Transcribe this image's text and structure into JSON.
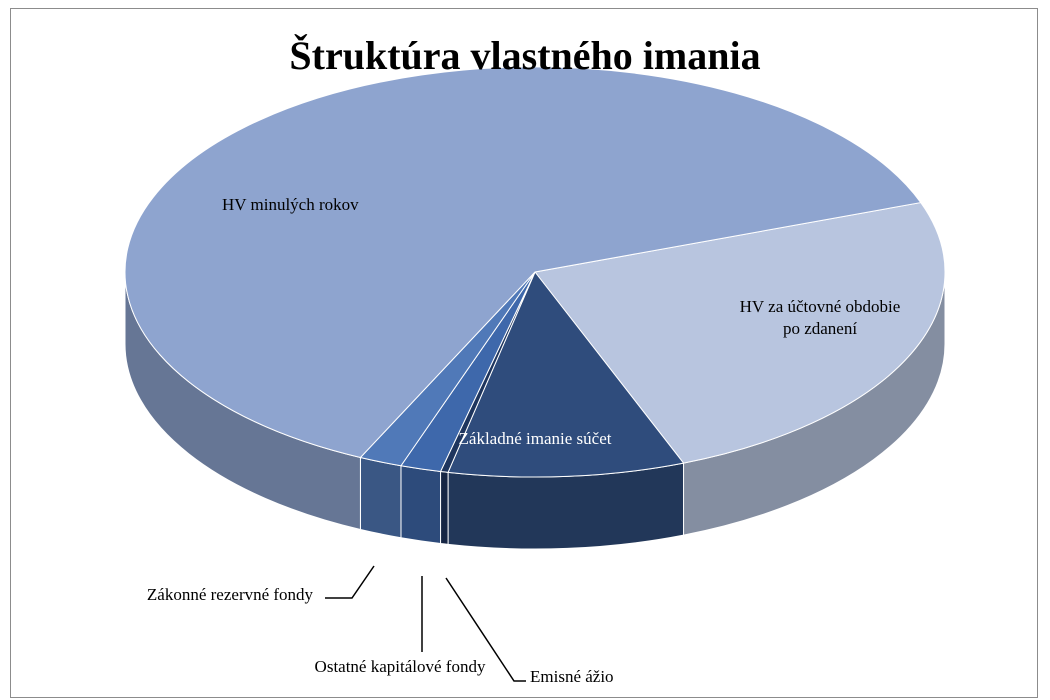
{
  "chart_data": {
    "type": "pie",
    "title": "Štruktúra vlastného imania",
    "categories": [
      "HV za účtovné obdobie po zdanení",
      "Základné imanie súčet",
      "Emisné ážio",
      "Ostatné kapitálové fondy",
      "Zákonné rezervné fondy",
      "HV minulých rokov"
    ],
    "values": [
      24.6,
      9.3,
      0.3,
      1.6,
      1.7,
      62.5
    ],
    "colors": [
      "#b8c5df",
      "#2f4c7c",
      "#1e355e",
      "#3e68ab",
      "#5079b8",
      "#8ea4cf"
    ]
  }
}
